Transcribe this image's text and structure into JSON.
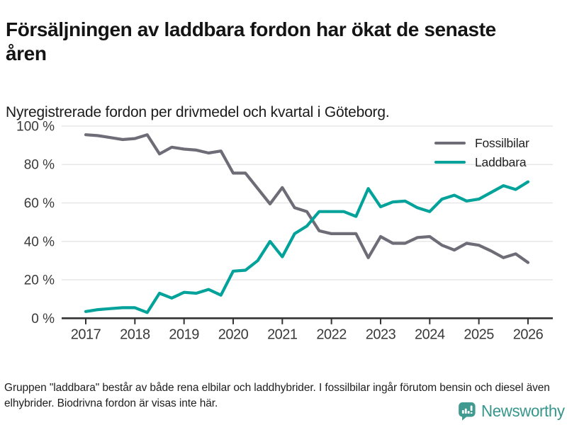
{
  "header": {
    "title": "Försäljningen av laddbara fordon har ökat de senaste åren",
    "subtitle": "Nyregistrerade fordon per drivmedel och kvartal i Göteborg."
  },
  "chart_data": {
    "type": "line",
    "x_start": 2017,
    "x_step_years": 0.25,
    "x_ticks": [
      "2017",
      "2018",
      "2019",
      "2020",
      "2021",
      "2022",
      "2023",
      "2024",
      "2025",
      "2026"
    ],
    "y_ticks": [
      "0 %",
      "20 %",
      "40 %",
      "60 %",
      "80 %",
      "100 %"
    ],
    "y_tick_values": [
      0,
      20,
      40,
      60,
      80,
      100
    ],
    "ylim": [
      0,
      100
    ],
    "grid": true,
    "legend_position": "top-right",
    "series": [
      {
        "name": "Fossilbilar",
        "color": "#6e6c76",
        "values": [
          95.5,
          95,
          94,
          93,
          93.5,
          95.5,
          85.5,
          89,
          88,
          87.5,
          86,
          87,
          75.5,
          75.5,
          67.5,
          59.5,
          68,
          57.5,
          55.5,
          45.5,
          44,
          44,
          44,
          31.5,
          42.5,
          39,
          39,
          42,
          42.5,
          38,
          35.5,
          39,
          38,
          35,
          31.5,
          33.5,
          29
        ]
      },
      {
        "name": "Laddbara",
        "color": "#00a29a",
        "values": [
          3.5,
          4.5,
          5,
          5.5,
          5.5,
          3,
          13,
          10.5,
          13.5,
          13,
          15,
          12,
          24.5,
          25,
          30,
          40,
          32,
          44,
          48,
          55.5,
          55.5,
          55.5,
          53,
          67.5,
          58,
          60.5,
          61,
          57.5,
          55.5,
          62,
          64,
          61,
          62,
          65.5,
          69,
          67,
          71
        ]
      }
    ],
    "colors": {
      "grid": "#e2e2e2",
      "axis": "#333333",
      "tick_label": "#3a3a3a"
    }
  },
  "footer": {
    "note": "Gruppen \"laddbara\" består av både rena elbilar och laddhybrider. I fossilbilar ingår förutom bensin och diesel även elhybrider. Biodrivna fordon är visas inte här.",
    "brand": "Newsworthy",
    "brand_color": "#37968c"
  }
}
